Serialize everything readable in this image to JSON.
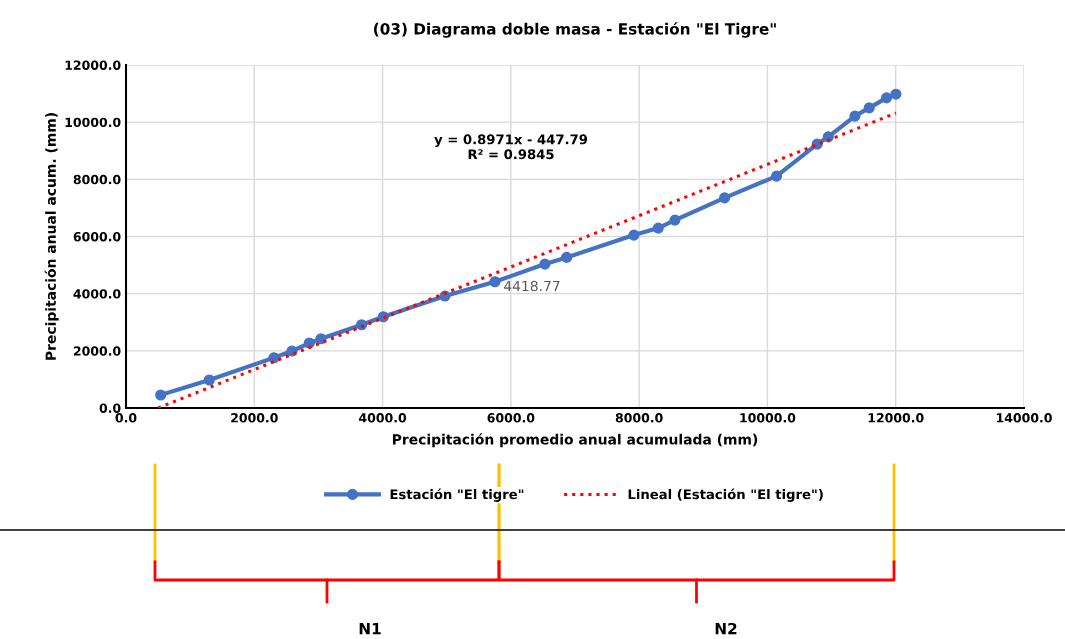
{
  "chart_data": {
    "type": "line",
    "title": "(03) Diagrama doble masa - Estación \"El Tigre\"",
    "xlabel": "Precipitación promedio anual acumulada (mm)",
    "ylabel": "Precipitación anual acum. (mm)",
    "series": [
      {
        "name": "Estación \"El tigre\"",
        "color": "#4472c4",
        "marker": "circle",
        "line_style": "solid",
        "x": [
          541,
          1299,
          2307,
          2588,
          2858,
          3040,
          3674,
          4012,
          4973,
          5752,
          6531,
          6870,
          7919,
          8298,
          8558,
          9332,
          10142,
          10776,
          10948,
          11364,
          11587,
          11857,
          12003
        ],
        "values": [
          455,
          979,
          1759,
          1993,
          2273,
          2423,
          2913,
          3192,
          3916,
          4418.77,
          5035,
          5269,
          6049,
          6294,
          6573,
          7353,
          8112,
          9231,
          9486,
          10210,
          10500,
          10850,
          10979
        ],
        "value_labels": [
          null,
          null,
          null,
          null,
          null,
          null,
          null,
          null,
          null,
          "4418.77",
          null,
          null,
          null,
          null,
          null,
          null,
          null,
          null,
          null,
          null,
          null,
          null,
          null
        ]
      },
      {
        "name": "Lineal (Estación \"El tigre\")",
        "color": "#ff0000",
        "marker": "none",
        "line_style": "dotted",
        "x": [
          500,
          12003
        ],
        "values": [
          0,
          10320
        ]
      }
    ],
    "xlim": [
      0,
      14000
    ],
    "xticks": [
      {
        "value": 0,
        "label": "0.0"
      },
      {
        "value": 2000,
        "label": "2000.0"
      },
      {
        "value": 4000,
        "label": "4000.0"
      },
      {
        "value": 6000,
        "label": "6000.0"
      },
      {
        "value": 8000,
        "label": "8000.0"
      },
      {
        "value": 10000,
        "label": "10000.0"
      },
      {
        "value": 12000,
        "label": "12000.0"
      },
      {
        "value": 14000,
        "label": "14000.0"
      }
    ],
    "ylim": [
      0,
      12000
    ],
    "yticks": [
      {
        "value": 0,
        "label": "0.0"
      },
      {
        "value": 2000,
        "label": "2000.0"
      },
      {
        "value": 4000,
        "label": "4000.0"
      },
      {
        "value": 6000,
        "label": "6000.0"
      },
      {
        "value": 8000,
        "label": "8000.0"
      },
      {
        "value": 10000,
        "label": "10000.0"
      },
      {
        "value": 12000,
        "label": "12000.0"
      }
    ],
    "grid": true,
    "legend": "bottom",
    "annotations": [
      "y = 0.8971x - 447.79\nR² = 0.9845",
      "N1",
      "N2"
    ]
  }
}
